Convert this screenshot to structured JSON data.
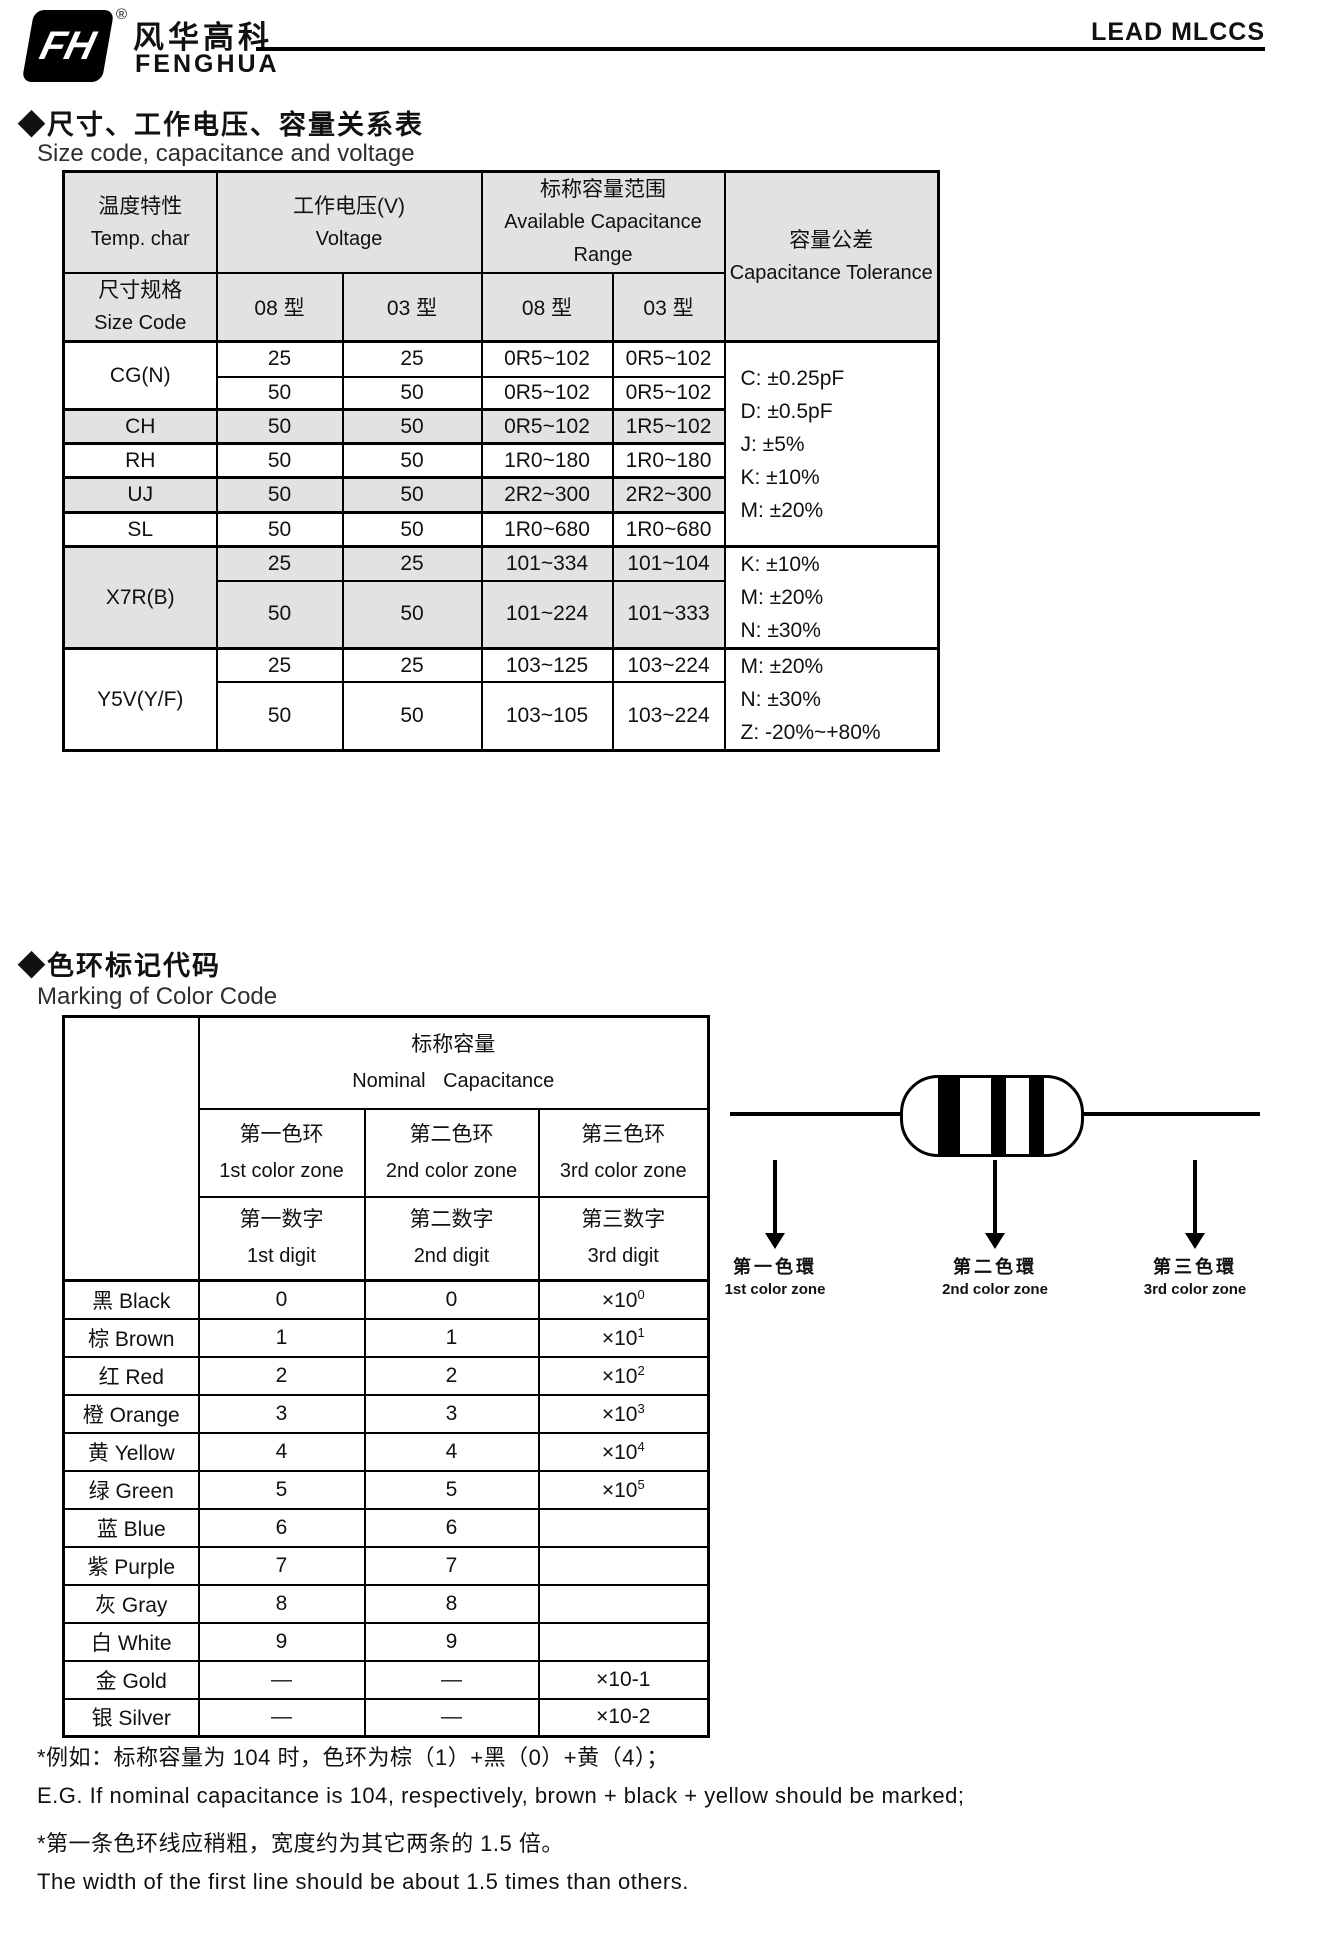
{
  "header": {
    "logo_mark": "FH",
    "registered": "®",
    "brand_cn": "风华高科",
    "brand_en": "FENGHUA",
    "doc_title": "LEAD MLCCS"
  },
  "section1": {
    "title_cn": "◆尺寸、工作电压、容量关系表",
    "title_en": "Size code, capacitance and voltage"
  },
  "table1": {
    "temp_cn": "温度特性",
    "temp_en": "Temp. char",
    "volt_cn": "工作电压(V)",
    "volt_en": "Voltage",
    "cap_cn": "标称容量范围",
    "cap_en": "Available Capacitance Range",
    "tol_cn": "容量公差",
    "tol_en": "Capacitance Tolerance",
    "size_cn": "尺寸规格",
    "size_en": "Size Code",
    "type08": "08 型",
    "type03": "03 型",
    "cg": {
      "label": "CG(N)",
      "r1": [
        "25",
        "25",
        "0R5~102",
        "0R5~102"
      ],
      "r2": [
        "50",
        "50",
        "0R5~102",
        "0R5~102"
      ]
    },
    "ch": {
      "label": "CH",
      "r": [
        "50",
        "50",
        "0R5~102",
        "1R5~102"
      ]
    },
    "rh": {
      "label": "RH",
      "r": [
        "50",
        "50",
        "1R0~180",
        "1R0~180"
      ]
    },
    "uj": {
      "label": "UJ",
      "r": [
        "50",
        "50",
        "2R2~300",
        "2R2~300"
      ]
    },
    "sl": {
      "label": "SL",
      "r": [
        "50",
        "50",
        "1R0~680",
        "1R0~680"
      ]
    },
    "x7r": {
      "label": "X7R(B)",
      "r1": [
        "25",
        "25",
        "101~334",
        "101~104"
      ],
      "r2": [
        "50",
        "50",
        "101~224",
        "101~333"
      ]
    },
    "y5v": {
      "label": "Y5V(Y/F)",
      "r1": [
        "25",
        "25",
        "103~125",
        "103~224"
      ],
      "r2": [
        "50",
        "50",
        "103~105",
        "103~224"
      ]
    },
    "tol_group1": [
      "C: ±0.25pF",
      "D: ±0.5pF",
      "J: ±5%",
      "K: ±10%",
      "M: ±20%"
    ],
    "tol_group2": [
      "K: ±10%",
      "M: ±20%",
      "N: ±30%"
    ],
    "tol_group3": [
      "M: ±20%",
      "N: ±30%",
      "Z: -20%~+80%"
    ]
  },
  "section2": {
    "title_cn": "◆色环标记代码",
    "title_en": "Marking of Color Code"
  },
  "table2": {
    "nominal_cn": "标称容量",
    "nominal_en": "Nominal Capacitance",
    "zone1_cn": "第一色环",
    "zone1_en": "1st color zone",
    "zone2_cn": "第二色环",
    "zone2_en": "2nd color zone",
    "zone3_cn": "第三色环",
    "zone3_en": "3rd color zone",
    "digit1_cn": "第一数字",
    "digit1_en": "1st digit",
    "digit2_cn": "第二数字",
    "digit2_en": "2nd digit",
    "digit3_cn": "第三数字",
    "digit3_en": "3rd digit",
    "rows": [
      {
        "label": "黑 Black",
        "d1": "0",
        "d2": "0",
        "mult": "×10",
        "exp": "0"
      },
      {
        "label": "棕 Brown",
        "d1": "1",
        "d2": "1",
        "mult": "×10",
        "exp": "1"
      },
      {
        "label": "红 Red",
        "d1": "2",
        "d2": "2",
        "mult": "×10",
        "exp": "2"
      },
      {
        "label": "橙 Orange",
        "d1": "3",
        "d2": "3",
        "mult": "×10",
        "exp": "3"
      },
      {
        "label": "黄 Yellow",
        "d1": "4",
        "d2": "4",
        "mult": "×10",
        "exp": "4"
      },
      {
        "label": "绿 Green",
        "d1": "5",
        "d2": "5",
        "mult": "×10",
        "exp": "5"
      },
      {
        "label": "蓝 Blue",
        "d1": "6",
        "d2": "6",
        "mult": "",
        "exp": ""
      },
      {
        "label": "紫 Purple",
        "d1": "7",
        "d2": "7",
        "mult": "",
        "exp": ""
      },
      {
        "label": "灰 Gray",
        "d1": "8",
        "d2": "8",
        "mult": "",
        "exp": ""
      },
      {
        "label": "白 White",
        "d1": "9",
        "d2": "9",
        "mult": "",
        "exp": ""
      },
      {
        "label": "金 Gold",
        "d1": "—",
        "d2": "—",
        "mult": "×10-1",
        "exp": ""
      },
      {
        "label": "银 Silver",
        "d1": "—",
        "d2": "—",
        "mult": "×10-2",
        "exp": ""
      }
    ]
  },
  "diagram": {
    "labels": [
      {
        "cn": "第一色環",
        "en": "1st color zone"
      },
      {
        "cn": "第二色環",
        "en": "2nd color zone"
      },
      {
        "cn": "第三色環",
        "en": "3rd color zone"
      }
    ]
  },
  "notes": [
    "*例如：标称容量为 104 时，色环为棕（1）+黑（0）+黄（4）；",
    "E.G. If nominal capacitance is 104, respectively, brown + black + yellow should be marked;",
    "*第一条色环线应稍粗，宽度约为其它两条的 1.5 倍。",
    "The width of the first line should be about 1.5 times than others."
  ]
}
